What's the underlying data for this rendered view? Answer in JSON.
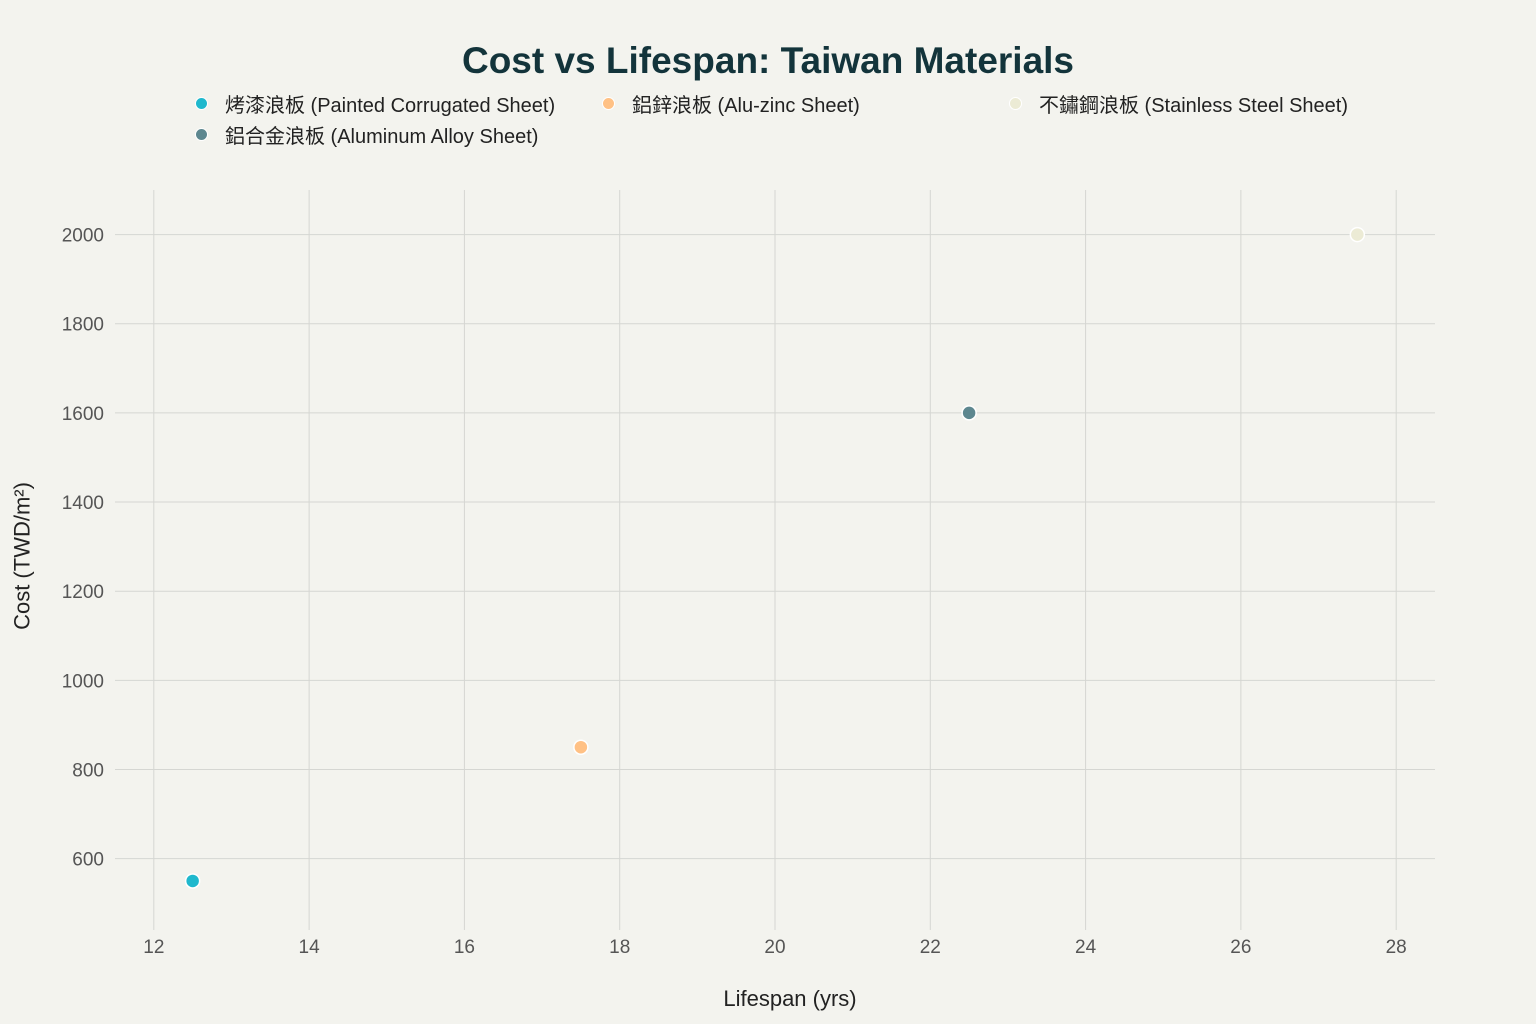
{
  "chart_data": {
    "type": "scatter",
    "title": "Cost vs Lifespan: Taiwan Materials",
    "xlabel": "Lifespan (yrs)",
    "ylabel": "Cost (TWD/m²)",
    "xlim": [
      11.5,
      28.5
    ],
    "ylim": [
      440,
      2100
    ],
    "xticks": [
      12,
      14,
      16,
      18,
      20,
      22,
      24,
      26,
      28
    ],
    "yticks": [
      600,
      800,
      1000,
      1200,
      1400,
      1600,
      1800,
      2000
    ],
    "grid": true,
    "legend_position": "top",
    "series": [
      {
        "name": "烤漆浪板 (Painted Corrugated Sheet)",
        "color": "#1fb8cd",
        "x": [
          12.5
        ],
        "y": [
          550
        ]
      },
      {
        "name": "鋁鋅浪板 (Alu-zinc Sheet)",
        "color": "#ffc185",
        "x": [
          17.5
        ],
        "y": [
          850
        ]
      },
      {
        "name": "不鏽鋼浪板 (Stainless Steel Sheet)",
        "color": "#ecebd5",
        "x": [
          27.5
        ],
        "y": [
          2000
        ]
      },
      {
        "name": "鋁合金浪板 (Aluminum Alloy Sheet)",
        "color": "#5d878f",
        "x": [
          22.5
        ],
        "y": [
          1600
        ]
      }
    ]
  }
}
